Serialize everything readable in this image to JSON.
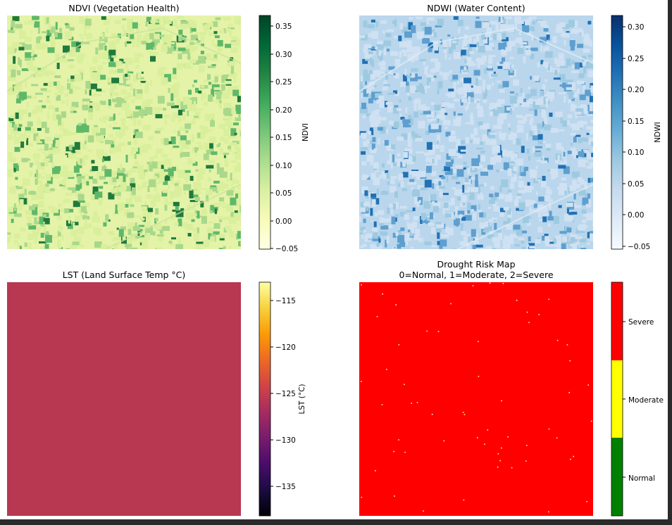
{
  "panels": {
    "ndvi": {
      "title": "NDVI (Vegetation Health)",
      "colorbar_label": "NDVI",
      "colormap": "YlGn",
      "ticks": [
        "0.35",
        "0.30",
        "0.25",
        "0.20",
        "0.15",
        "0.10",
        "0.05",
        "0.00",
        "−0.05"
      ],
      "colors": [
        "#ffffe5",
        "#f7fcb9",
        "#d9f0a3",
        "#addd8e",
        "#78c679",
        "#41ab5d",
        "#238443",
        "#006837",
        "#004529"
      ]
    },
    "ndwi": {
      "title": "NDWI (Water Content)",
      "colorbar_label": "NDWI",
      "colormap": "Blues",
      "ticks": [
        "0.30",
        "0.25",
        "0.20",
        "0.15",
        "0.10",
        "0.05",
        "0.00",
        "−0.05"
      ],
      "colors": [
        "#f7fbff",
        "#deebf7",
        "#c6dbef",
        "#9ecae1",
        "#6baed6",
        "#4292c6",
        "#2171b5",
        "#08519c",
        "#08306b"
      ]
    },
    "lst": {
      "title": "LST (Land Surface Temp °C)",
      "colorbar_label": "LST (°C)",
      "colormap": "inferno",
      "ticks": [
        "−115",
        "−120",
        "−125",
        "−130",
        "−135"
      ],
      "fill_color": "#b83751",
      "colors": [
        "#000004",
        "#1b0c41",
        "#4a0c6b",
        "#781c6d",
        "#a52c60",
        "#cf4446",
        "#ed6925",
        "#fb9b06",
        "#f7d13d",
        "#fcffa4"
      ]
    },
    "drought": {
      "title_line1": "Drought Risk Map",
      "title_line2": "0=Normal, 1=Moderate, 2=Severe",
      "fill_color": "#ff0000",
      "classes": [
        {
          "label": "Severe",
          "color": "#ff0000"
        },
        {
          "label": "Moderate",
          "color": "#ffff00"
        },
        {
          "label": "Normal",
          "color": "#008000"
        }
      ]
    }
  },
  "chart_data": [
    {
      "type": "heatmap",
      "title": "NDVI (Vegetation Health)",
      "colorbar_label": "NDVI",
      "colorbar_range": [
        -0.055,
        0.368
      ],
      "colorbar_ticks": [
        -0.05,
        0.0,
        0.05,
        0.1,
        0.15,
        0.2,
        0.25,
        0.3,
        0.35
      ]
    },
    {
      "type": "heatmap",
      "title": "NDWI (Water Content)",
      "colorbar_label": "NDWI",
      "colorbar_range": [
        -0.058,
        0.316
      ],
      "colorbar_ticks": [
        -0.05,
        0.0,
        0.05,
        0.1,
        0.15,
        0.2,
        0.25,
        0.3
      ]
    },
    {
      "type": "heatmap",
      "title": "LST (Land Surface Temp °C)",
      "colorbar_label": "LST (°C)",
      "colorbar_range": [
        -138.0,
        -113.0
      ],
      "colorbar_ticks": [
        -135,
        -130,
        -125,
        -120,
        -115
      ],
      "uniform_value": -124.0
    },
    {
      "type": "heatmap",
      "title": "Drought Risk Map",
      "subtitle": "0=Normal, 1=Moderate, 2=Severe",
      "categories": [
        "Normal",
        "Moderate",
        "Severe"
      ],
      "category_values": [
        0,
        1,
        2
      ],
      "dominant_category": "Severe"
    }
  ]
}
